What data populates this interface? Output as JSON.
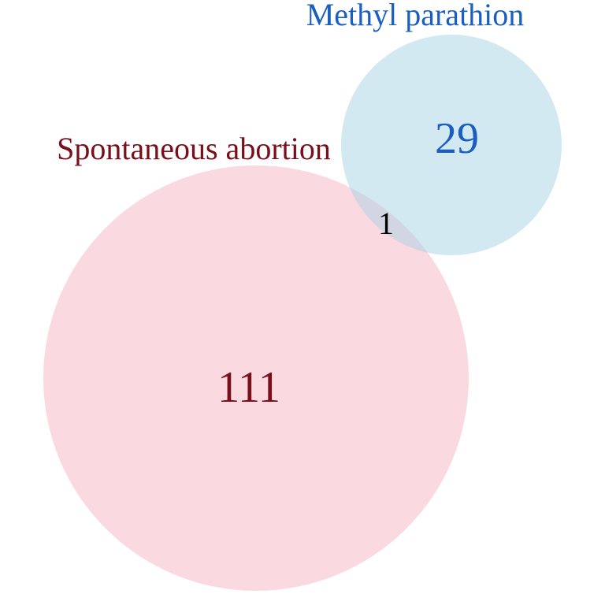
{
  "diagram": {
    "type": "venn",
    "sets": [
      {
        "id": "spontaneous-abortion",
        "label": "Spontaneous abortion",
        "only_count": "111",
        "fill_color": "#f9c0cb",
        "text_color": "#7a0f1a"
      },
      {
        "id": "methyl-parathion",
        "label": "Methyl parathion",
        "only_count": "29",
        "fill_color": "#a7d3e3",
        "text_color": "#1a5fbf"
      }
    ],
    "overlap": {
      "count": "1",
      "text_color": "#000000"
    }
  }
}
